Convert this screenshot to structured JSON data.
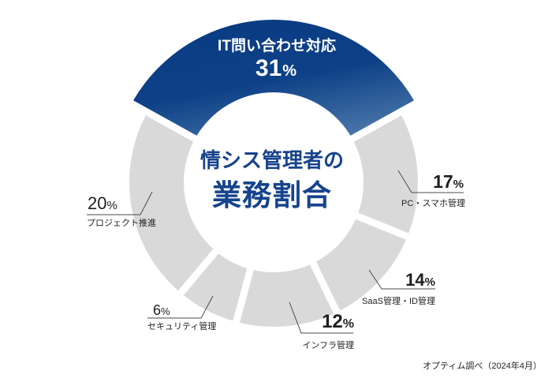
{
  "chart_data": {
    "type": "pie",
    "subtype": "donut",
    "title": "情シス管理者の業務割合",
    "source": "オプティム調べ（2024年4月）",
    "unit": "%",
    "categories": [
      "IT問い合わせ対応",
      "PC・スマホ管理",
      "SaaS管理・ID管理",
      "インフラ管理",
      "セキュリティ管理",
      "プロジェクト推進"
    ],
    "values": [
      31,
      17,
      14,
      12,
      6,
      20
    ],
    "legend_position": "callouts",
    "slices": [
      {
        "label": "IT問い合わせ対応",
        "value": 31,
        "highlight": true,
        "color": "#0b3f88",
        "start_deg": -61,
        "end_deg": 61
      },
      {
        "label": "PC・スマホ管理",
        "value": 17,
        "highlight": false,
        "color": "#d9d9d9",
        "start_deg": 61,
        "end_deg": 112
      },
      {
        "label": "SaaS管理・ID管理",
        "value": 14,
        "highlight": false,
        "color": "#d9d9d9",
        "start_deg": 112,
        "end_deg": 154
      },
      {
        "label": "インフラ管理",
        "value": 12,
        "highlight": false,
        "color": "#d9d9d9",
        "start_deg": 154,
        "end_deg": 195
      },
      {
        "label": "セキュリティ管理",
        "value": 6,
        "highlight": false,
        "color": "#d9d9d9",
        "start_deg": 195,
        "end_deg": 220
      },
      {
        "label": "プロジェクト推進",
        "value": 20,
        "highlight": false,
        "color": "#d9d9d9",
        "start_deg": 220,
        "end_deg": 299
      }
    ]
  },
  "center_title": {
    "line1": "情シス管理者の",
    "line2": "業務割合"
  },
  "colors": {
    "accent_dark": "#0b3d86",
    "accent_light": "#4a75a8",
    "gray_slice": "#d9d9d9",
    "center_text": "#16438c"
  }
}
